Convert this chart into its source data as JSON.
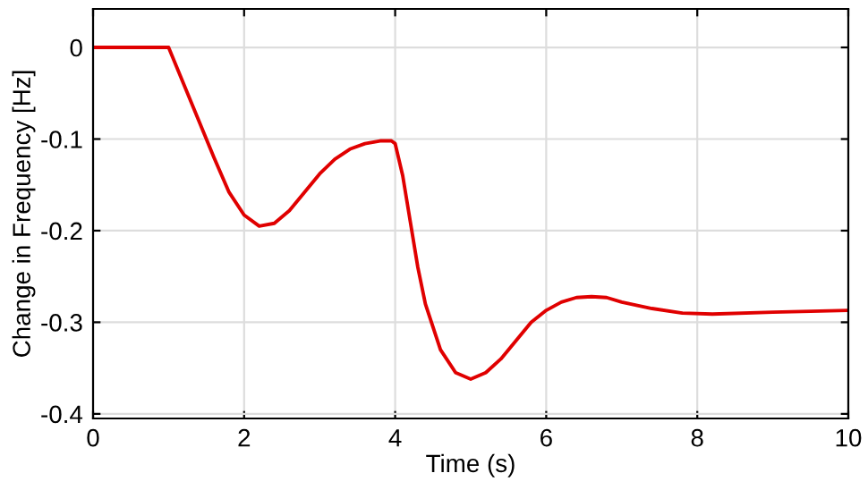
{
  "chart_data": {
    "type": "line",
    "xlabel": "Time (s)",
    "ylabel": "Change in Frequency [Hz]",
    "xlim": [
      0,
      10
    ],
    "ylim": [
      -0.405,
      0.042
    ],
    "xticks": [
      0,
      2,
      4,
      6,
      8,
      10
    ],
    "yticks": [
      -0.4,
      -0.3,
      -0.2,
      -0.1,
      0
    ],
    "grid": true,
    "series": [
      {
        "color": "#e00000",
        "x": [
          0,
          1,
          1.2,
          1.4,
          1.6,
          1.8,
          2.0,
          2.2,
          2.4,
          2.6,
          2.8,
          3.0,
          3.2,
          3.4,
          3.6,
          3.8,
          3.95,
          4.0,
          4.1,
          4.2,
          4.3,
          4.4,
          4.6,
          4.8,
          5.0,
          5.2,
          5.4,
          5.6,
          5.8,
          6.0,
          6.2,
          6.4,
          6.6,
          6.8,
          7.0,
          7.4,
          7.8,
          8.2,
          9.0,
          10
        ],
        "values": [
          0,
          0,
          -0.04,
          -0.08,
          -0.12,
          -0.158,
          -0.183,
          -0.195,
          -0.192,
          -0.178,
          -0.158,
          -0.138,
          -0.122,
          -0.111,
          -0.105,
          -0.102,
          -0.102,
          -0.105,
          -0.14,
          -0.19,
          -0.24,
          -0.28,
          -0.33,
          -0.355,
          -0.362,
          -0.355,
          -0.34,
          -0.32,
          -0.3,
          -0.287,
          -0.278,
          -0.273,
          -0.272,
          -0.273,
          -0.278,
          -0.285,
          -0.29,
          -0.291,
          -0.289,
          -0.287
        ]
      }
    ]
  }
}
